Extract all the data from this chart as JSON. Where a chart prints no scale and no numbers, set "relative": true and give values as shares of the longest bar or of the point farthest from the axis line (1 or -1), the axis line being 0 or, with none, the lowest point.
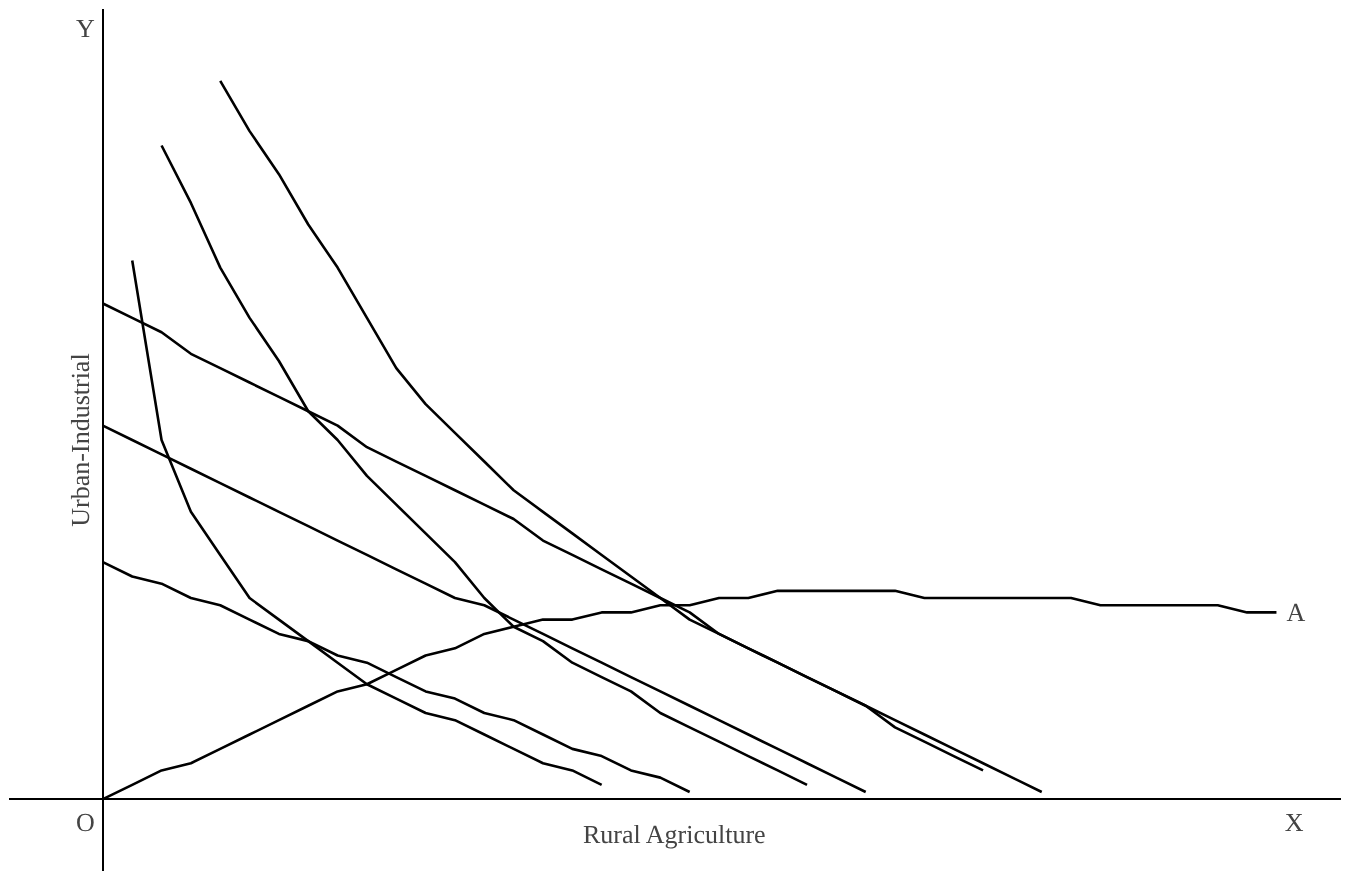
{
  "chart_data": {
    "type": "line",
    "relative": true,
    "xlabel": "Rural Agriculture",
    "ylabel": "Urban-Industrial",
    "marker": "none",
    "line_style": "solid",
    "categories": [
      null,
      null,
      null,
      null,
      null,
      null,
      null,
      null,
      null,
      null,
      null,
      null,
      null,
      null,
      null,
      null,
      null,
      null,
      null,
      null,
      null,
      null,
      null,
      null,
      null,
      null,
      null,
      null,
      null,
      null,
      null,
      null,
      null,
      null,
      null,
      null,
      null,
      null,
      null,
      null,
      null
    ],
    "series": [
      {
        "color": "#000000",
        "values": [
          null,
          0.75,
          0.5,
          0.4,
          0.34,
          0.28,
          0.25,
          0.22,
          0.19,
          0.16,
          0.14,
          0.12,
          0.11,
          0.09,
          0.07,
          0.05,
          0.04,
          0.02,
          null,
          null,
          null,
          null,
          null,
          null,
          null,
          null,
          null,
          null,
          null,
          null,
          null,
          null,
          null,
          null,
          null,
          null,
          null,
          null,
          null,
          null,
          null
        ]
      },
      {
        "color": "#000000",
        "values": [
          null,
          null,
          0.91,
          0.83,
          0.74,
          0.67,
          0.61,
          0.54,
          0.5,
          0.45,
          0.41,
          0.37,
          0.33,
          0.28,
          0.24,
          0.22,
          0.19,
          0.17,
          0.15,
          0.12,
          0.1,
          0.08,
          0.06,
          0.04,
          0.02,
          null,
          null,
          null,
          null,
          null,
          null,
          null,
          null,
          null,
          null,
          null,
          null,
          null,
          null,
          null,
          null
        ]
      },
      {
        "color": "#000000",
        "values": [
          null,
          null,
          null,
          null,
          1.0,
          0.93,
          0.87,
          0.8,
          0.74,
          0.67,
          0.6,
          0.55,
          0.51,
          0.47,
          0.43,
          0.4,
          0.37,
          0.34,
          0.31,
          0.28,
          0.25,
          0.23,
          0.21,
          0.19,
          0.17,
          0.15,
          0.13,
          0.11,
          0.09,
          0.07,
          0.05,
          0.03,
          0.01,
          null,
          null,
          null,
          null,
          null,
          null,
          null,
          null
        ]
      },
      {
        "color": "#000000",
        "values": [
          0.69,
          0.67,
          0.65,
          0.62,
          0.6,
          0.58,
          0.56,
          0.54,
          0.52,
          0.49,
          0.47,
          0.45,
          0.43,
          0.41,
          0.39,
          0.36,
          0.34,
          0.32,
          0.3,
          0.28,
          0.26,
          0.23,
          0.21,
          0.19,
          0.17,
          0.15,
          0.13,
          0.1,
          0.08,
          0.06,
          0.04,
          null,
          null,
          null,
          null,
          null,
          null,
          null,
          null,
          null,
          null
        ]
      },
      {
        "color": "#000000",
        "values": [
          0.52,
          0.5,
          0.48,
          0.46,
          0.44,
          0.42,
          0.4,
          0.38,
          0.36,
          0.34,
          0.32,
          0.3,
          0.28,
          0.27,
          0.25,
          0.23,
          0.21,
          0.19,
          0.17,
          0.15,
          0.13,
          0.11,
          0.09,
          0.07,
          0.05,
          0.03,
          0.01,
          null,
          null,
          null,
          null,
          null,
          null,
          null,
          null,
          null,
          null,
          null,
          null,
          null,
          null
        ]
      },
      {
        "color": "#000000",
        "values": [
          0.33,
          0.31,
          0.3,
          0.28,
          0.27,
          0.25,
          0.23,
          0.22,
          0.2,
          0.19,
          0.17,
          0.15,
          0.14,
          0.12,
          0.11,
          0.09,
          0.07,
          0.06,
          0.04,
          0.03,
          0.01,
          null,
          null,
          null,
          null,
          null,
          null,
          null,
          null,
          null,
          null,
          null,
          null,
          null,
          null,
          null,
          null,
          null,
          null,
          null,
          null
        ]
      },
      {
        "color": "#000000",
        "values": [
          0,
          0.02,
          0.04,
          0.05,
          0.07,
          0.09,
          0.11,
          0.13,
          0.15,
          0.16,
          0.18,
          0.2,
          0.21,
          0.23,
          0.24,
          0.25,
          0.25,
          0.26,
          0.26,
          0.27,
          0.27,
          0.28,
          0.28,
          0.29,
          0.29,
          0.29,
          0.29,
          0.29,
          0.28,
          0.28,
          0.28,
          0.28,
          0.28,
          0.28,
          0.27,
          0.27,
          0.27,
          0.27,
          0.27,
          0.26,
          0.26
        ]
      }
    ],
    "annotations": [
      "O",
      "X",
      "Y",
      "A"
    ]
  }
}
